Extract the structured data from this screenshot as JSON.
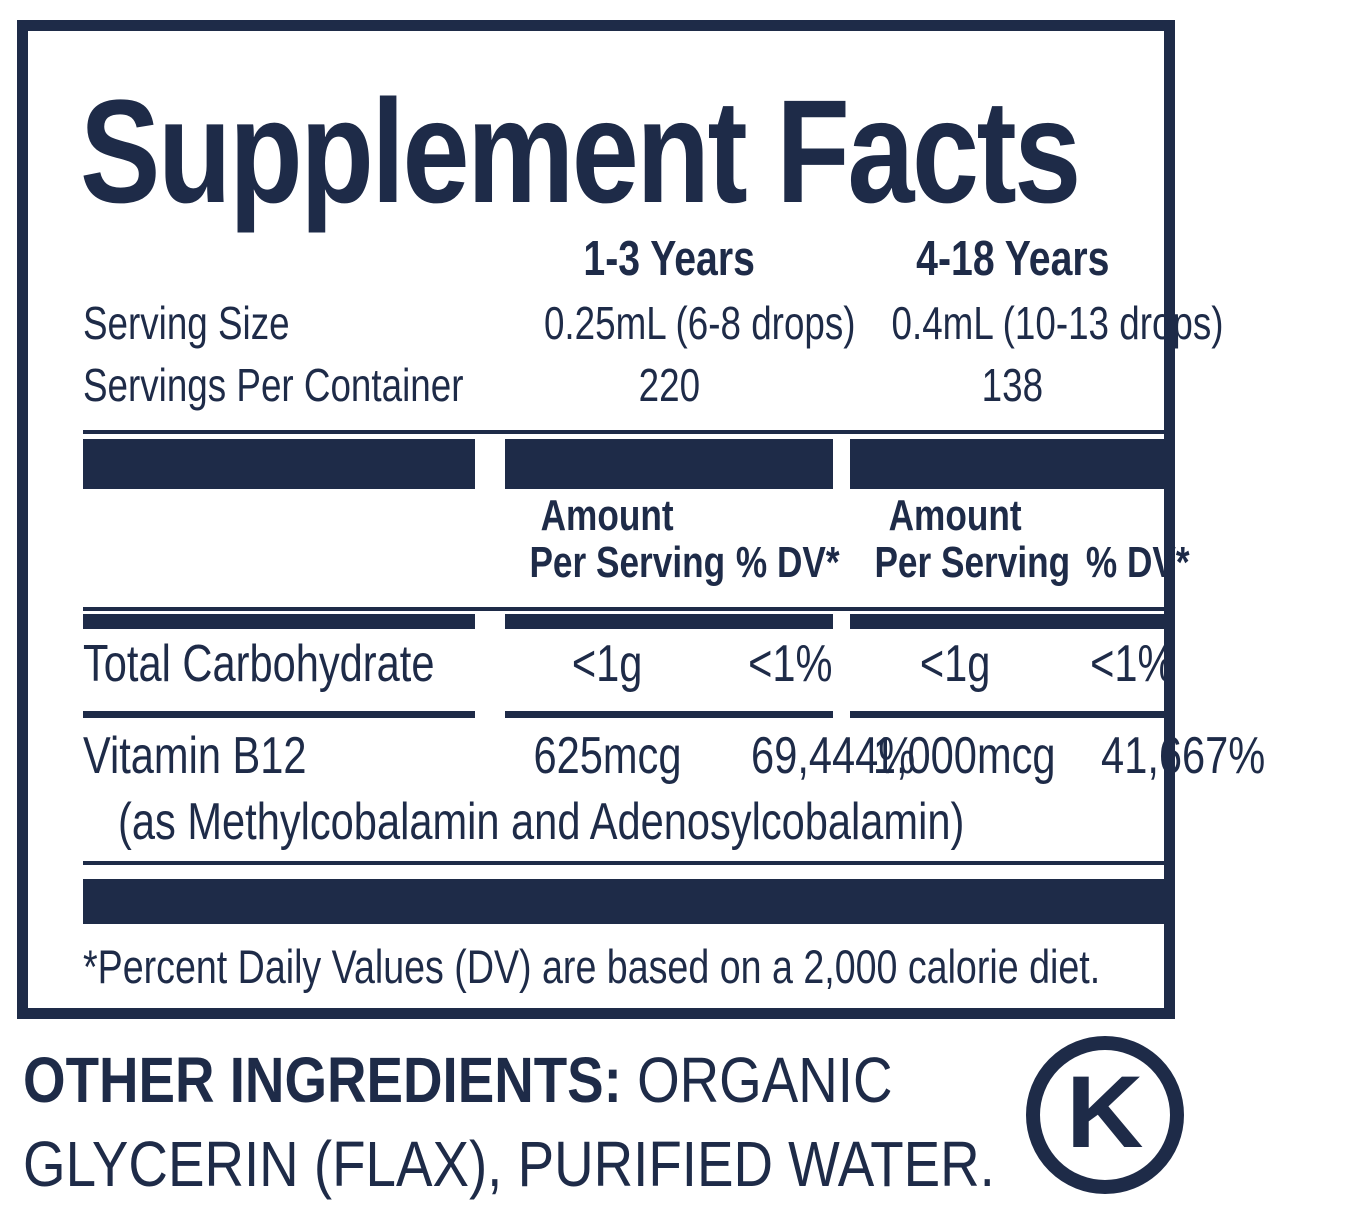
{
  "colors": {
    "navy": "#1e2b48",
    "background": "#ffffff"
  },
  "supplement_facts": {
    "title": "Supplement Facts",
    "age_columns": [
      "1-3 Years",
      "4-18 Years"
    ],
    "serving_info": [
      {
        "label": "Serving Size",
        "values": [
          "0.25mL (6-8 drops)",
          "0.4mL (10-13 drops)"
        ]
      },
      {
        "label": "Servings Per Container",
        "values": [
          "220",
          "138"
        ]
      }
    ],
    "column_headers": {
      "amount_line1": "Amount",
      "amount_line2": "Per Serving",
      "dv": "% DV*"
    },
    "nutrients": [
      {
        "name": "Total Carbohydrate",
        "columns": [
          {
            "amount": "<1g",
            "dv": "<1%"
          },
          {
            "amount": "<1g",
            "dv": "<1%"
          }
        ]
      },
      {
        "name": "Vitamin B12",
        "form": "(as Methylcobalamin and Adenosylcobalamin)",
        "columns": [
          {
            "amount": "625mcg",
            "dv": "69,444%"
          },
          {
            "amount": "1,000mcg",
            "dv": "41,667%"
          }
        ]
      }
    ],
    "footnote": "*Percent Daily Values (DV) are based on a 2,000 calorie diet."
  },
  "other_ingredients": {
    "label": "OTHER INGREDIENTS:",
    "text": " ORGANIC GLYCERIN (FLAX), PURIFIED WATER."
  },
  "certification": {
    "kosher_letter": "K"
  }
}
